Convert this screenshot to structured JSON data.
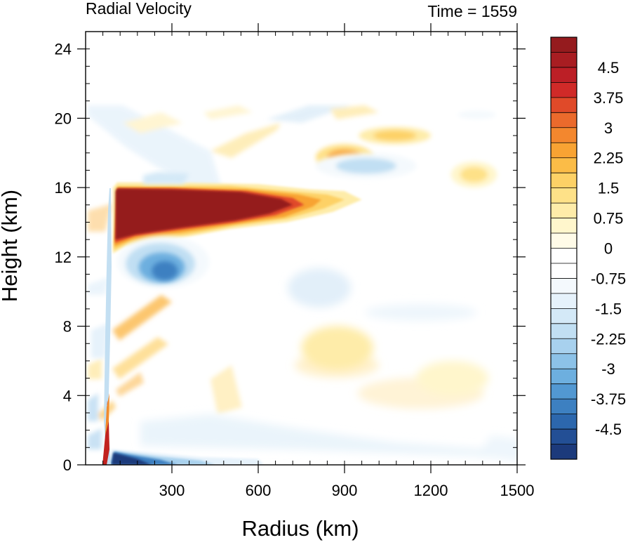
{
  "chart_data": {
    "type": "heatmap",
    "title_left": "Radial Velocity",
    "title_right": "Time = 1559",
    "xlabel": "Radius (km)",
    "ylabel": "Height (km)",
    "xlim": [
      0,
      1500
    ],
    "ylim": [
      0,
      25
    ],
    "x_ticks": [
      300,
      600,
      900,
      1200,
      1500
    ],
    "x_tick_labels": [
      "300",
      "600",
      "900",
      "1200",
      "1500"
    ],
    "y_ticks": [
      0,
      4,
      8,
      12,
      16,
      20,
      24
    ],
    "y_tick_labels": [
      "0",
      "4",
      "8",
      "12",
      "16",
      "20",
      "24"
    ],
    "colorbar": {
      "min": -5.25,
      "max": 5.25,
      "step": 0.375,
      "labels": [
        "4.5",
        "3.75",
        "3",
        "2.25",
        "1.5",
        "0.75",
        "0",
        "-0.75",
        "-1.5",
        "-2.25",
        "-3",
        "-3.75",
        "-4.5"
      ],
      "label_values": [
        4.5,
        3.75,
        3,
        2.25,
        1.5,
        0.75,
        0,
        -0.75,
        -1.5,
        -2.25,
        -3,
        -3.75,
        -4.5
      ],
      "colors_top_to_bottom": [
        "#951b1e",
        "#a81d22",
        "#bc1f26",
        "#d02a28",
        "#e04a29",
        "#eb6a2c",
        "#f3872e",
        "#f8a333",
        "#fbbc47",
        "#fdd166",
        "#fee188",
        "#feeca9",
        "#fff6cc",
        "#fffbe8",
        "#ffffff",
        "#ffffff",
        "#f4f9fd",
        "#e6f2fb",
        "#d4e9f7",
        "#c1dff3",
        "#a8d1ee",
        "#8cc2e8",
        "#6dafdf",
        "#5298d2",
        "#3d80c1",
        "#2c67ad",
        "#234f95",
        "#1c3a7b"
      ]
    },
    "features": [
      {
        "name": "upper-level outflow",
        "x": [
          90,
          800
        ],
        "y": [
          13,
          16
        ],
        "value": 5.2
      },
      {
        "name": "outflow extension",
        "x": [
          700,
          960
        ],
        "y": [
          14.5,
          15.6
        ],
        "value": 2.5
      },
      {
        "name": "mid-level inflow",
        "x": [
          150,
          430
        ],
        "y": [
          10.5,
          12.5
        ],
        "value": -4.2
      },
      {
        "name": "boundary-layer inflow",
        "x": [
          90,
          620
        ],
        "y": [
          0,
          0.8
        ],
        "value": -5.0
      },
      {
        "name": "upper band",
        "x": [
          800,
          1000
        ],
        "y": [
          17,
          18.5
        ],
        "value": 2.6
      },
      {
        "name": "upper band",
        "x": [
          800,
          1150
        ],
        "y": [
          16.5,
          18
        ],
        "value": -2.0
      },
      {
        "name": "upper band",
        "x": [
          950,
          1200
        ],
        "y": [
          18.5,
          19.5
        ],
        "value": 1.6
      },
      {
        "name": "upper band",
        "x": [
          1270,
          1430
        ],
        "y": [
          16,
          17.5
        ],
        "value": 1.3
      },
      {
        "name": "upper band",
        "x": [
          1250,
          1470
        ],
        "y": [
          19.8,
          20.6
        ],
        "value": -1.0
      },
      {
        "name": "mid-level weak outflow",
        "x": [
          750,
          1000
        ],
        "y": [
          5.5,
          8
        ],
        "value": 0.8
      },
      {
        "name": "mid-level weak outflow",
        "x": [
          1150,
          1400
        ],
        "y": [
          4,
          6
        ],
        "value": 0.5
      }
    ]
  }
}
